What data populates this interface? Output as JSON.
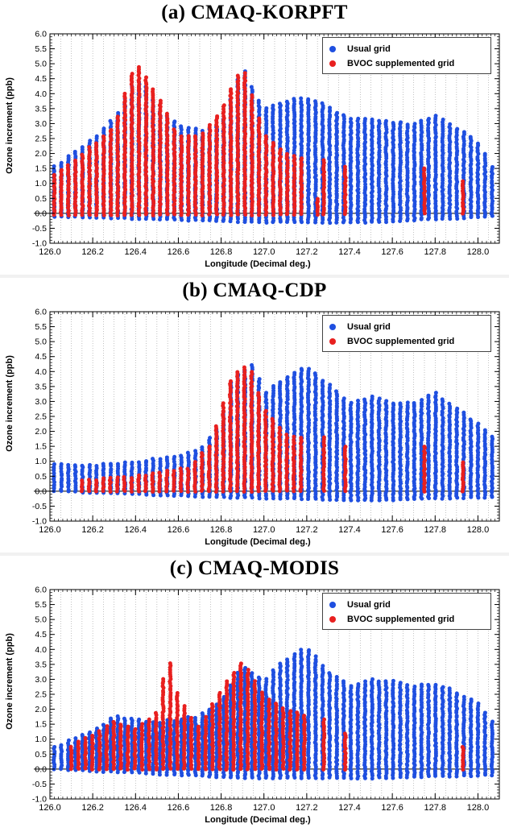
{
  "chart_data": [
    {
      "type": "scatter",
      "title": "(a) CMAQ-KORPFT",
      "xlabel": "Longitude (Decimal deg.)",
      "ylabel": "Ozone increment (ppb)",
      "xlim": [
        126.0,
        128.1
      ],
      "ylim": [
        -1.0,
        6.0
      ],
      "xticks": [
        "126.0",
        "126.2",
        "126.4",
        "126.6",
        "126.8",
        "127.0",
        "127.2",
        "127.4",
        "127.6",
        "127.8",
        "128.0"
      ],
      "yticks": [
        "6.0",
        "5.5",
        "5.0",
        "4.5",
        "4.0",
        "3.5",
        "3.0",
        "2.5",
        "2.0",
        "1.5",
        "1.0",
        "0.5",
        "0.0",
        "-0.5",
        "-1.0"
      ],
      "legend_position": "top-right",
      "series": [
        {
          "name": "Usual grid",
          "color": "#1f4fe0",
          "envelope": [
            [
              126.02,
              1.6
            ],
            [
              126.1,
              2.0
            ],
            [
              126.2,
              2.5
            ],
            [
              126.3,
              3.2
            ],
            [
              126.4,
              4.5
            ],
            [
              126.45,
              4.3
            ],
            [
              126.5,
              3.5
            ],
            [
              126.6,
              3.0
            ],
            [
              126.7,
              2.8
            ],
            [
              126.8,
              3.0
            ],
            [
              126.9,
              4.9
            ],
            [
              127.0,
              3.5
            ],
            [
              127.1,
              3.8
            ],
            [
              127.2,
              3.9
            ],
            [
              127.3,
              3.6
            ],
            [
              127.4,
              3.2
            ],
            [
              127.5,
              3.2
            ],
            [
              127.6,
              3.1
            ],
            [
              127.7,
              3.0
            ],
            [
              127.8,
              3.3
            ],
            [
              127.9,
              2.9
            ],
            [
              128.0,
              2.4
            ],
            [
              128.08,
              1.4
            ]
          ],
          "min_values": [
            [
              126.02,
              -0.1
            ],
            [
              126.5,
              -0.2
            ],
            [
              127.0,
              -0.3
            ],
            [
              127.5,
              -0.3
            ],
            [
              128.08,
              -0.1
            ]
          ]
        },
        {
          "name": "BVOC supplemented grid",
          "color": "#e8201f",
          "envelope": [
            [
              126.02,
              1.3
            ],
            [
              126.1,
              1.7
            ],
            [
              126.2,
              2.3
            ],
            [
              126.3,
              2.9
            ],
            [
              126.35,
              4.0
            ],
            [
              126.4,
              5.1
            ],
            [
              126.5,
              4.0
            ],
            [
              126.6,
              2.6
            ],
            [
              126.7,
              2.6
            ],
            [
              126.8,
              3.5
            ],
            [
              126.9,
              5.0
            ],
            [
              127.0,
              2.7
            ],
            [
              127.1,
              2.0
            ],
            [
              127.2,
              1.8
            ],
            [
              127.25,
              0.5
            ],
            [
              127.28,
              1.8
            ],
            [
              127.38,
              1.6
            ],
            [
              127.75,
              1.5
            ],
            [
              127.93,
              1.1
            ]
          ],
          "min_values": [
            [
              126.02,
              -0.05
            ],
            [
              127.0,
              -0.05
            ],
            [
              127.93,
              0.0
            ]
          ]
        }
      ]
    },
    {
      "type": "scatter",
      "title": "(b) CMAQ-CDP",
      "xlabel": "Longitude (Decimal deg.)",
      "ylabel": "Ozone increment (ppb)",
      "xlim": [
        126.0,
        128.1
      ],
      "ylim": [
        -1.0,
        6.0
      ],
      "xticks": [
        "126.0",
        "126.2",
        "126.4",
        "126.6",
        "126.8",
        "127.0",
        "127.2",
        "127.4",
        "127.6",
        "127.8",
        "128.0"
      ],
      "yticks": [
        "6.0",
        "5.5",
        "5.0",
        "4.5",
        "4.0",
        "3.5",
        "3.0",
        "2.5",
        "2.0",
        "1.5",
        "1.0",
        "0.5",
        "0.0",
        "-0.5",
        "-1.0"
      ],
      "legend_position": "top-right",
      "series": [
        {
          "name": "Usual grid",
          "color": "#1f4fe0",
          "envelope": [
            [
              126.02,
              0.9
            ],
            [
              126.2,
              0.9
            ],
            [
              126.4,
              1.0
            ],
            [
              126.6,
              1.2
            ],
            [
              126.7,
              1.4
            ],
            [
              126.8,
              2.3
            ],
            [
              126.85,
              3.8
            ],
            [
              126.95,
              4.3
            ],
            [
              127.0,
              3.3
            ],
            [
              127.1,
              3.8
            ],
            [
              127.2,
              4.2
            ],
            [
              127.3,
              3.6
            ],
            [
              127.4,
              3.0
            ],
            [
              127.5,
              3.2
            ],
            [
              127.6,
              3.0
            ],
            [
              127.7,
              3.0
            ],
            [
              127.8,
              3.3
            ],
            [
              127.9,
              2.8
            ],
            [
              128.0,
              2.3
            ],
            [
              128.08,
              1.8
            ]
          ],
          "min_values": [
            [
              126.02,
              0.0
            ],
            [
              126.8,
              -0.2
            ],
            [
              127.5,
              -0.3
            ],
            [
              128.08,
              -0.2
            ]
          ]
        },
        {
          "name": "BVOC supplemented grid",
          "color": "#e8201f",
          "envelope": [
            [
              126.15,
              0.4
            ],
            [
              126.3,
              0.5
            ],
            [
              126.38,
              0.5
            ],
            [
              126.65,
              0.8
            ],
            [
              126.75,
              1.6
            ],
            [
              126.85,
              3.9
            ],
            [
              126.93,
              4.3
            ],
            [
              127.0,
              2.8
            ],
            [
              127.1,
              1.9
            ],
            [
              127.2,
              1.8
            ],
            [
              127.28,
              1.8
            ],
            [
              127.38,
              1.5
            ],
            [
              127.75,
              1.5
            ],
            [
              127.93,
              1.0
            ]
          ],
          "min_values": [
            [
              126.15,
              0.0
            ],
            [
              127.93,
              0.0
            ]
          ]
        }
      ]
    },
    {
      "type": "scatter",
      "title": "(c) CMAQ-MODIS",
      "xlabel": "Longitude (Decimal deg.)",
      "ylabel": "Ozone increment (ppb)",
      "xlim": [
        126.0,
        128.1
      ],
      "ylim": [
        -1.0,
        6.0
      ],
      "xticks": [
        "126.0",
        "126.2",
        "126.4",
        "126.6",
        "126.8",
        "127.0",
        "127.2",
        "127.4",
        "127.6",
        "127.8",
        "128.0"
      ],
      "yticks": [
        "6.0",
        "5.5",
        "5.0",
        "4.5",
        "4.0",
        "3.5",
        "3.0",
        "2.5",
        "2.0",
        "1.5",
        "1.0",
        "0.5",
        "0.0",
        "-0.5",
        "-1.0"
      ],
      "legend_position": "top-right",
      "series": [
        {
          "name": "Usual grid",
          "color": "#1f4fe0",
          "envelope": [
            [
              126.02,
              0.8
            ],
            [
              126.1,
              1.0
            ],
            [
              126.2,
              1.3
            ],
            [
              126.3,
              1.8
            ],
            [
              126.4,
              1.7
            ],
            [
              126.5,
              1.6
            ],
            [
              126.6,
              1.7
            ],
            [
              126.7,
              1.8
            ],
            [
              126.8,
              2.3
            ],
            [
              126.9,
              3.5
            ],
            [
              127.0,
              3.0
            ],
            [
              127.1,
              3.7
            ],
            [
              127.2,
              4.1
            ],
            [
              127.3,
              3.3
            ],
            [
              127.4,
              2.8
            ],
            [
              127.5,
              3.0
            ],
            [
              127.6,
              3.0
            ],
            [
              127.7,
              2.8
            ],
            [
              127.8,
              2.9
            ],
            [
              127.9,
              2.6
            ],
            [
              128.0,
              2.2
            ],
            [
              128.08,
              1.5
            ]
          ],
          "min_values": [
            [
              126.02,
              0.0
            ],
            [
              126.9,
              -0.3
            ],
            [
              127.5,
              -0.3
            ],
            [
              128.08,
              -0.2
            ]
          ]
        },
        {
          "name": "BVOC supplemented grid",
          "color": "#e8201f",
          "envelope": [
            [
              126.1,
              0.8
            ],
            [
              126.2,
              1.2
            ],
            [
              126.3,
              1.6
            ],
            [
              126.4,
              1.4
            ],
            [
              126.5,
              1.9
            ],
            [
              126.55,
              3.9
            ],
            [
              126.6,
              2.4
            ],
            [
              126.7,
              1.4
            ],
            [
              126.8,
              2.7
            ],
            [
              126.9,
              3.6
            ],
            [
              127.0,
              2.5
            ],
            [
              127.1,
              2.0
            ],
            [
              127.2,
              1.8
            ],
            [
              127.28,
              1.7
            ],
            [
              127.38,
              1.2
            ],
            [
              127.93,
              0.8
            ]
          ],
          "min_values": [
            [
              126.1,
              0.0
            ],
            [
              127.93,
              0.0
            ]
          ]
        }
      ]
    }
  ]
}
